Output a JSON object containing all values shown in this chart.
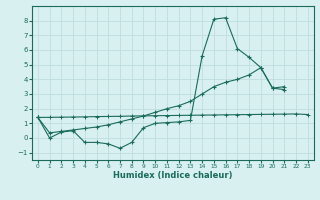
{
  "xlabel": "Humidex (Indice chaleur)",
  "x_values": [
    0,
    1,
    2,
    3,
    4,
    5,
    6,
    7,
    8,
    9,
    10,
    11,
    12,
    13,
    14,
    15,
    16,
    17,
    18,
    19,
    20,
    21,
    22,
    23
  ],
  "line1_y": [
    1.4,
    0.0,
    0.4,
    0.5,
    -0.3,
    -0.3,
    -0.4,
    -0.7,
    -0.3,
    0.7,
    1.0,
    1.05,
    1.1,
    1.2,
    5.6,
    8.1,
    8.2,
    6.1,
    5.5,
    4.8,
    3.4,
    3.5,
    null,
    null
  ],
  "line2_y": [
    1.4,
    0.35,
    0.45,
    0.55,
    0.65,
    0.75,
    0.9,
    1.1,
    1.3,
    1.5,
    1.75,
    2.0,
    2.2,
    2.5,
    3.0,
    3.5,
    3.8,
    4.0,
    4.3,
    4.8,
    3.4,
    3.3,
    null,
    null
  ],
  "line3_y": [
    1.4,
    1.41,
    1.42,
    1.43,
    1.44,
    1.46,
    1.47,
    1.48,
    1.5,
    1.51,
    1.52,
    1.53,
    1.54,
    1.55,
    1.56,
    1.57,
    1.58,
    1.59,
    1.6,
    1.61,
    1.62,
    1.63,
    1.64,
    1.6
  ],
  "line_color": "#1a6b5a",
  "bg_color": "#d8f0f0",
  "grid_color": "#c0dede",
  "ylim": [
    -1.5,
    9.0
  ],
  "xlim": [
    -0.5,
    23.5
  ],
  "yticks": [
    -1,
    0,
    1,
    2,
    3,
    4,
    5,
    6,
    7,
    8
  ],
  "xticks": [
    0,
    1,
    2,
    3,
    4,
    5,
    6,
    7,
    8,
    9,
    10,
    11,
    12,
    13,
    14,
    15,
    16,
    17,
    18,
    19,
    20,
    21,
    22,
    23
  ]
}
